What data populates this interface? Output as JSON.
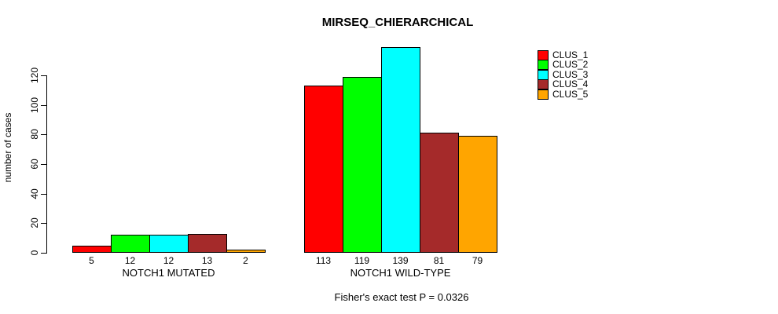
{
  "title": "MIRSEQ_CHIERARCHICAL",
  "ylabel": "number of cases",
  "footer": "Fisher's exact test P = 0.0326",
  "chart_data": {
    "type": "bar",
    "title": "MIRSEQ_CHIERARCHICAL",
    "xlabel": "",
    "ylabel": "number of cases",
    "categories": [
      "NOTCH1 MUTATED",
      "NOTCH1 WILD-TYPE"
    ],
    "series": [
      {
        "name": "CLUS_1",
        "color": "#FF0000",
        "values": [
          5,
          113
        ]
      },
      {
        "name": "CLUS_2",
        "color": "#00FF00",
        "values": [
          12,
          119
        ]
      },
      {
        "name": "CLUS_3",
        "color": "#00FFFF",
        "values": [
          12,
          139
        ]
      },
      {
        "name": "CLUS_4",
        "color": "#A52A2A",
        "values": [
          13,
          81
        ]
      },
      {
        "name": "CLUS_5",
        "color": "#FFA500",
        "values": [
          2,
          79
        ]
      }
    ],
    "bar_value_labels": [
      [
        5,
        12,
        12,
        13,
        2
      ],
      [
        113,
        119,
        139,
        81,
        79
      ]
    ],
    "yticks": [
      0,
      20,
      40,
      60,
      80,
      100,
      120
    ],
    "ylim": [
      0,
      120
    ],
    "grid": false,
    "legend_position": "top-right",
    "annotation": "Fisher's exact test P = 0.0326"
  }
}
